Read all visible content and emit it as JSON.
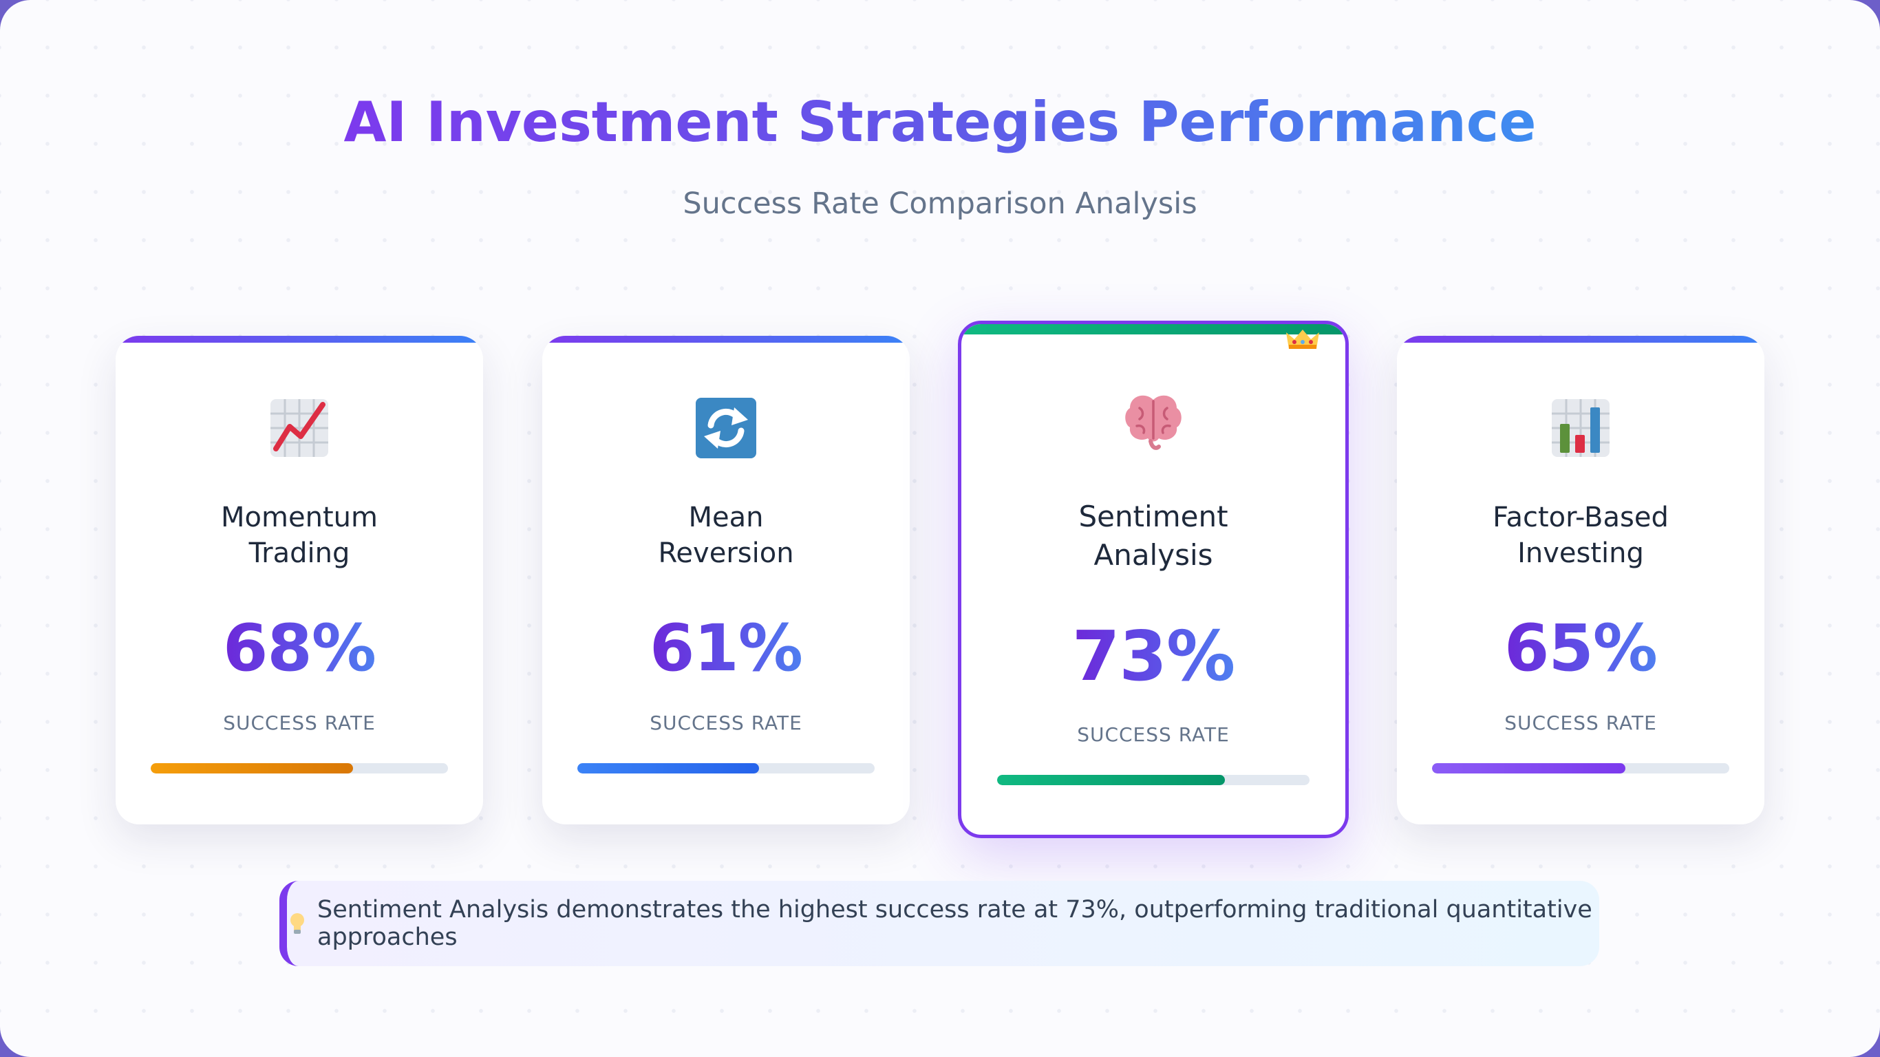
{
  "header": {
    "title": "AI Investment Strategies Performance",
    "subtitle": "Success Rate Comparison Analysis"
  },
  "chart_data": {
    "type": "bar",
    "title": "AI Investment Strategies Performance",
    "subtitle": "Success Rate Comparison Analysis",
    "categories": [
      "Momentum Trading",
      "Mean Reversion",
      "Sentiment Analysis",
      "Factor-Based Investing"
    ],
    "values": [
      68,
      61,
      73,
      65
    ],
    "unit": "%",
    "value_label": "SUCCESS RATE",
    "ylim": [
      0,
      100
    ],
    "highlighted": "Sentiment Analysis"
  },
  "cards": [
    {
      "name": "Momentum\nTrading",
      "value_text": "68%",
      "value": 68,
      "label": "SUCCESS RATE",
      "icon": "chart-increasing-icon",
      "bar_color_start": "#f59e0b",
      "bar_color_end": "#d97706"
    },
    {
      "name": "Mean\nReversion",
      "value_text": "61%",
      "value": 61,
      "label": "SUCCESS RATE",
      "icon": "refresh-arrows-icon",
      "bar_color_start": "#3b82f6",
      "bar_color_end": "#2563eb"
    },
    {
      "name": "Sentiment\nAnalysis",
      "value_text": "73%",
      "value": 73,
      "label": "SUCCESS RATE",
      "icon": "brain-icon",
      "badge": "crown-icon",
      "bar_color_start": "#10b981",
      "bar_color_end": "#059669"
    },
    {
      "name": "Factor-Based\nInvesting",
      "value_text": "65%",
      "value": 65,
      "label": "SUCCESS RATE",
      "icon": "bar-chart-icon",
      "bar_color_start": "#8b5cf6",
      "bar_color_end": "#7c3aed"
    }
  ],
  "insight": {
    "icon": "lightbulb-icon",
    "text": "Sentiment Analysis demonstrates the highest success rate at 73%, outperforming traditional quantitative approaches"
  },
  "colors": {
    "accent_purple": "#7c3aed",
    "accent_blue": "#3b82f6",
    "highlight_green": "#10b981"
  }
}
